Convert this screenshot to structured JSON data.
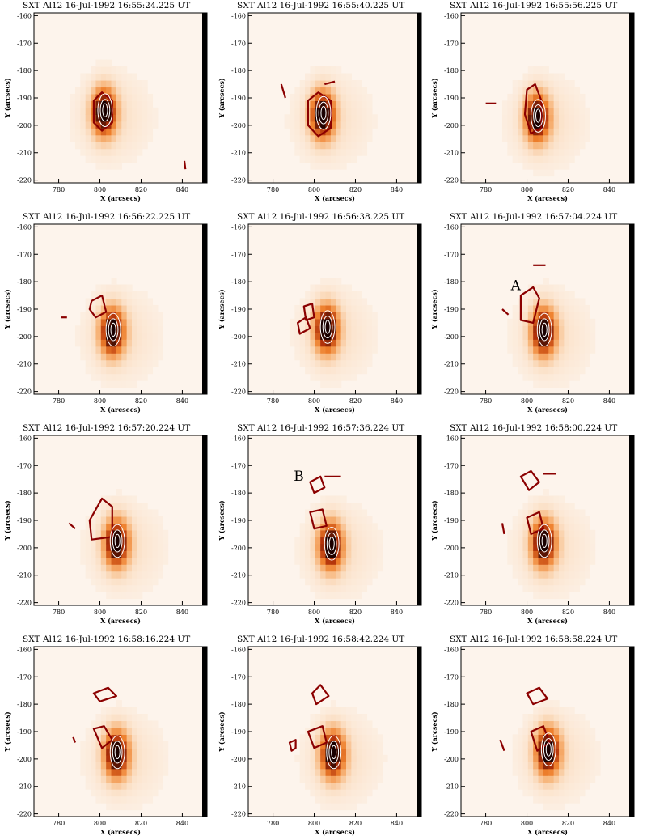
{
  "figure": {
    "title_prefix": "SXT Al12  16-Jul-1992",
    "time_suffix": "UT",
    "panel_times": [
      "16:55:24.225",
      "16:55:40.225",
      "16:55:56.225",
      "16:56:22.225",
      "16:56:38.225",
      "16:57:04.224",
      "16:57:20.224",
      "16:57:36.224",
      "16:58:00.224",
      "16:58:16.224",
      "16:58:42.224",
      "16:58:58.224"
    ],
    "xlabel": "X (arcsecs)",
    "ylabel": "Y (arcsecs)",
    "x_ticks": [
      780,
      800,
      820,
      840
    ],
    "y_ticks": [
      -160,
      -170,
      -180,
      -190,
      -200,
      -210,
      -220
    ],
    "annotations": [
      {
        "panel": 5,
        "text": "A"
      },
      {
        "panel": 7,
        "text": "B"
      }
    ],
    "colors": {
      "image_low": "#fdf4ec",
      "image_high": "#1a0000",
      "contour_red": "#8b0000",
      "contour_white": "#ffffff"
    }
  },
  "chart_data": {
    "type": "heatmap",
    "xlim": [
      768,
      852
    ],
    "ylim": [
      -221,
      -159
    ],
    "panels": [
      {
        "time": "16:55:24.225",
        "source": {
          "x": 802,
          "y": -195
        },
        "red_contours": [
          [
            [
              797,
              -191
            ],
            [
              801,
              -188
            ],
            [
              806,
              -191
            ],
            [
              806,
              -199
            ],
            [
              801,
              -202
            ],
            [
              797,
              -199
            ]
          ],
          [
            [
              841,
              -213
            ],
            [
              841.5,
              -216
            ]
          ]
        ]
      },
      {
        "time": "16:55:40.225",
        "source": {
          "x": 804,
          "y": -196
        },
        "red_contours": [
          [
            [
              797,
              -191
            ],
            [
              802,
              -188
            ],
            [
              808,
              -191
            ],
            [
              808,
              -201
            ],
            [
              802,
              -204
            ],
            [
              797,
              -200
            ]
          ],
          [
            [
              784,
              -185
            ],
            [
              786,
              -190
            ]
          ],
          [
            [
              805,
              -185
            ],
            [
              810,
              -184
            ]
          ]
        ]
      },
      {
        "time": "16:55:56.225",
        "source": {
          "x": 805,
          "y": -197
        },
        "red_contours": [
          [
            [
              800,
              -187
            ],
            [
              804,
              -185
            ],
            [
              807,
              -191
            ],
            [
              807,
              -201
            ],
            [
              802,
              -203
            ],
            [
              799,
              -196
            ]
          ],
          [
            [
              780,
              -192
            ],
            [
              785,
              -192
            ]
          ]
        ]
      },
      {
        "time": "16:56:22.225",
        "source": {
          "x": 806,
          "y": -198
        },
        "red_contours": [
          [
            [
              796,
              -187
            ],
            [
              801,
              -185
            ],
            [
              803,
              -191
            ],
            [
              798,
              -193
            ],
            [
              795,
              -190
            ]
          ],
          [
            [
              781,
              -193
            ],
            [
              784,
              -193
            ]
          ]
        ]
      },
      {
        "time": "16:56:38.225",
        "source": {
          "x": 806,
          "y": -197
        },
        "red_contours": [
          [
            [
              795,
              -189
            ],
            [
              799,
              -188
            ],
            [
              800,
              -193
            ],
            [
              796,
              -194
            ]
          ],
          [
            [
              792,
              -195
            ],
            [
              796,
              -193
            ],
            [
              798,
              -197
            ],
            [
              793,
              -199
            ]
          ]
        ]
      },
      {
        "time": "16:57:04.224",
        "source": {
          "x": 808,
          "y": -198
        },
        "red_contours": [
          [
            [
              803,
              -174
            ],
            [
              809,
              -174
            ]
          ],
          [
            [
              797,
              -185
            ],
            [
              803,
              -182
            ],
            [
              806,
              -186
            ],
            [
              803,
              -195
            ],
            [
              797,
              -194
            ]
          ],
          [
            [
              788,
              -190
            ],
            [
              791,
              -192
            ]
          ]
        ]
      },
      {
        "time": "16:57:20.224",
        "source": {
          "x": 808,
          "y": -198
        },
        "red_contours": [
          [
            [
              795,
              -190
            ],
            [
              801,
              -182
            ],
            [
              806,
              -185
            ],
            [
              806,
              -196
            ],
            [
              796,
              -197
            ]
          ],
          [
            [
              785,
              -191
            ],
            [
              788,
              -193
            ]
          ]
        ]
      },
      {
        "time": "16:57:36.224",
        "source": {
          "x": 808,
          "y": -199
        },
        "red_contours": [
          [
            [
              798,
              -176
            ],
            [
              803,
              -174
            ],
            [
              805,
              -178
            ],
            [
              800,
              -180
            ]
          ],
          [
            [
              805,
              -174
            ],
            [
              813,
              -174
            ]
          ],
          [
            [
              798,
              -187
            ],
            [
              804,
              -186
            ],
            [
              806,
              -192
            ],
            [
              800,
              -193
            ]
          ]
        ]
      },
      {
        "time": "16:58:00.224",
        "source": {
          "x": 808,
          "y": -198
        },
        "red_contours": [
          [
            [
              797,
              -174
            ],
            [
              802,
              -172
            ],
            [
              806,
              -176
            ],
            [
              801,
              -179
            ]
          ],
          [
            [
              808,
              -173
            ],
            [
              814,
              -173
            ]
          ],
          [
            [
              800,
              -189
            ],
            [
              806,
              -187
            ],
            [
              808,
              -193
            ],
            [
              802,
              -195
            ]
          ],
          [
            [
              788,
              -191
            ],
            [
              789,
              -195
            ]
          ]
        ]
      },
      {
        "time": "16:58:16.224",
        "source": {
          "x": 808,
          "y": -198
        },
        "red_contours": [
          [
            [
              797,
              -176
            ],
            [
              804,
              -174
            ],
            [
              808,
              -177
            ],
            [
              800,
              -179
            ]
          ],
          [
            [
              797,
              -189
            ],
            [
              802,
              -188
            ],
            [
              806,
              -193
            ],
            [
              801,
              -196
            ]
          ],
          [
            [
              787,
              -192
            ],
            [
              788,
              -194
            ]
          ]
        ]
      },
      {
        "time": "16:58:42.224",
        "source": {
          "x": 809,
          "y": -198
        },
        "red_contours": [
          [
            [
              799,
              -176
            ],
            [
              803,
              -173
            ],
            [
              807,
              -177
            ],
            [
              801,
              -180
            ]
          ],
          [
            [
              788,
              -194
            ],
            [
              791,
              -193
            ],
            [
              791,
              -196
            ],
            [
              789,
              -197
            ]
          ],
          [
            [
              797,
              -190
            ],
            [
              804,
              -188
            ],
            [
              806,
              -194
            ],
            [
              800,
              -196
            ]
          ]
        ]
      },
      {
        "time": "16:58:58.224",
        "source": {
          "x": 810,
          "y": -197
        },
        "red_contours": [
          [
            [
              800,
              -176
            ],
            [
              806,
              -174
            ],
            [
              810,
              -178
            ],
            [
              803,
              -180
            ]
          ],
          [
            [
              787,
              -193
            ],
            [
              789,
              -197
            ]
          ],
          [
            [
              802,
              -190
            ],
            [
              808,
              -188
            ],
            [
              811,
              -194
            ],
            [
              805,
              -197
            ]
          ]
        ]
      }
    ]
  }
}
